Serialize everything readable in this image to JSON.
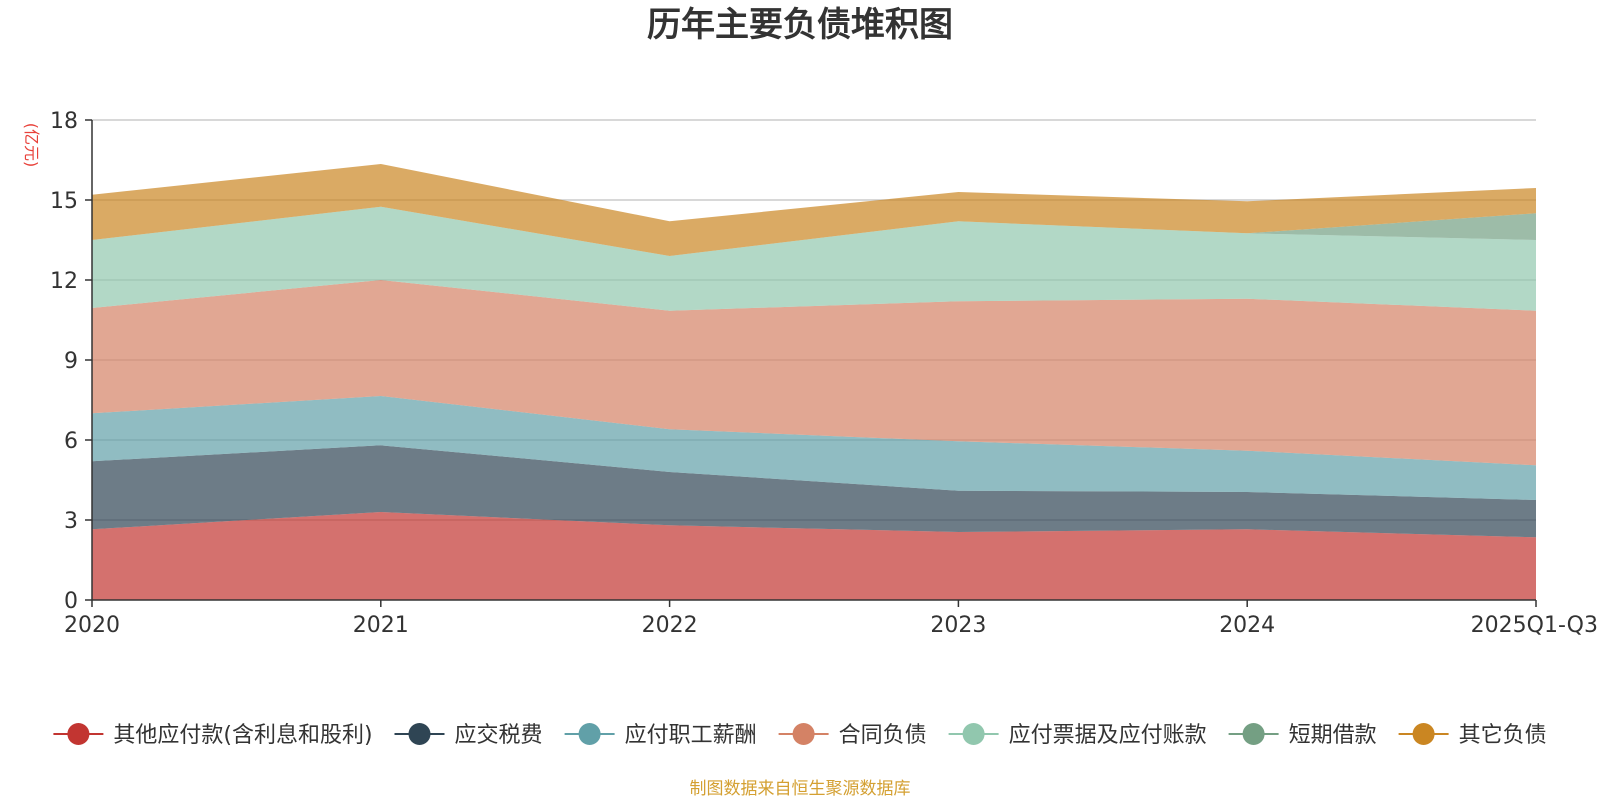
{
  "chart_data": {
    "type": "area",
    "stacked": true,
    "title": "历年主要负债堆积图",
    "ylabel": "(亿元)",
    "xlabel": "",
    "ylim": [
      0,
      18
    ],
    "yticks": [
      0,
      3,
      6,
      9,
      12,
      15,
      18
    ],
    "categories": [
      "2020",
      "2021",
      "2022",
      "2023",
      "2024",
      "2025Q1-Q3"
    ],
    "grid": true,
    "legend_position": "bottom",
    "source": "制图数据来自恒生聚源数据库",
    "series": [
      {
        "name": "其他应付款(含利息和股利)",
        "color": "#c23531",
        "values": [
          2.65,
          3.3,
          2.8,
          2.55,
          2.65,
          2.35
        ]
      },
      {
        "name": "应交税费",
        "color": "#2f4554",
        "values": [
          2.55,
          2.5,
          2.0,
          1.55,
          1.4,
          1.4
        ]
      },
      {
        "name": "应付职工薪酬",
        "color": "#61a0a8",
        "values": [
          1.8,
          1.85,
          1.6,
          1.85,
          1.55,
          1.3
        ]
      },
      {
        "name": "合同负债",
        "color": "#d48265",
        "values": [
          3.95,
          4.35,
          4.45,
          5.25,
          5.7,
          5.8
        ]
      },
      {
        "name": "应付票据及应付账款",
        "color": "#91c7ae",
        "values": [
          2.55,
          2.75,
          2.05,
          3.0,
          2.45,
          2.65
        ]
      },
      {
        "name": "短期借款",
        "color": "#749f83",
        "values": [
          0,
          0,
          0,
          0,
          0,
          1.0
        ]
      },
      {
        "name": "其它负债",
        "color": "#ca8622",
        "values": [
          1.7,
          1.6,
          1.3,
          1.1,
          1.2,
          0.95
        ]
      }
    ]
  }
}
